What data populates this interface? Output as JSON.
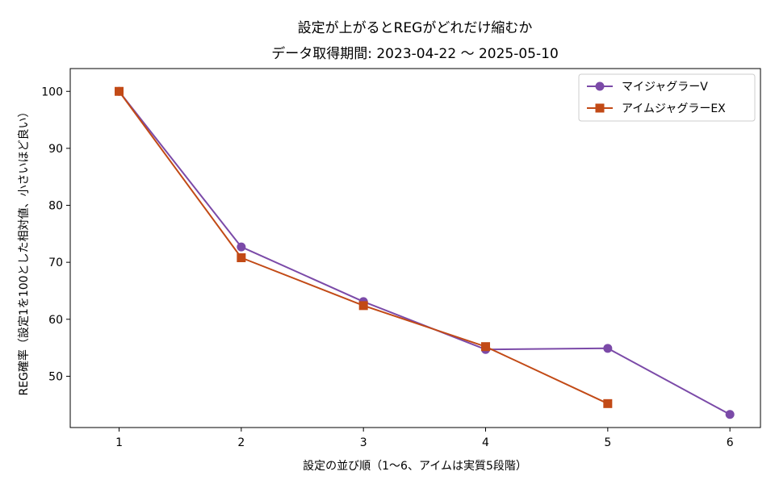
{
  "chart_data": {
    "type": "line",
    "title": "設定が上がるとREGがどれだけ縮むか",
    "subtitle": "データ取得期間: 2023-04-22 〜 2025-05-10",
    "xlabel": "設定の並び順（1〜6、アイムは実質5段階）",
    "ylabel": "REG確率（設定1を100とした相対値、小さいほど良い）",
    "xticks": [
      "1",
      "2",
      "3",
      "4",
      "5",
      "6"
    ],
    "yticks": [
      "50",
      "60",
      "70",
      "80",
      "90",
      "100"
    ],
    "xlim": [
      0.6,
      6.25
    ],
    "ylim": [
      41.0,
      104.0
    ],
    "grid": false,
    "legend_position": "top-right",
    "series": [
      {
        "name": "マイジャグラーV",
        "color": "#7b4aa8",
        "marker": "circle",
        "x": [
          1,
          2,
          3,
          4,
          5,
          6
        ],
        "y": [
          100.0,
          72.7,
          63.1,
          54.7,
          54.9,
          43.3
        ]
      },
      {
        "name": "アイムジャグラーEX",
        "color": "#c24a16",
        "marker": "square",
        "x": [
          1,
          2,
          3,
          4,
          5
        ],
        "y": [
          100.0,
          70.8,
          62.4,
          55.2,
          45.2
        ]
      }
    ]
  }
}
